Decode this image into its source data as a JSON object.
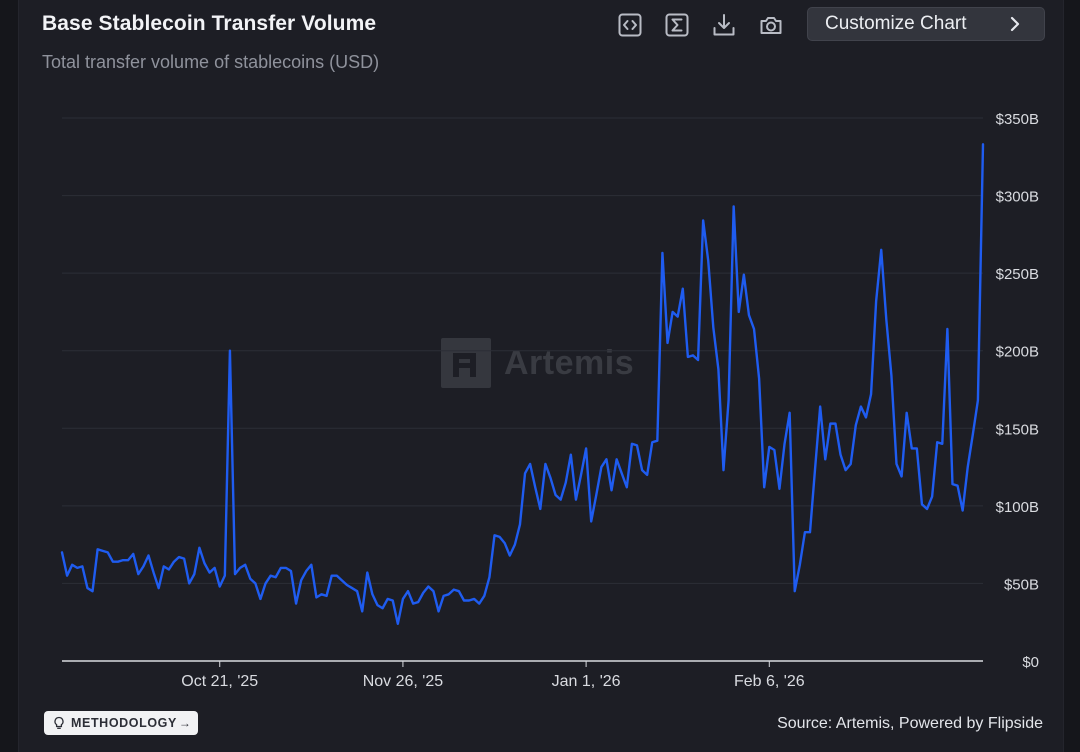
{
  "header": {
    "title": "Base Stablecoin Transfer Volume",
    "subtitle": "Total transfer volume of stablecoins (USD)",
    "customize_label": "Customize Chart"
  },
  "toolbar": {
    "icons": [
      "code-embed-icon",
      "sigma-icon",
      "download-icon",
      "camera-icon"
    ]
  },
  "watermark": {
    "text": "Artemis"
  },
  "footer": {
    "methodology_label": "METHODOLOGY",
    "source": "Source: Artemis, Powered by Flipside"
  },
  "colors": {
    "line": "#1f5cf0",
    "grid": "#2c2e37",
    "axis": "#d9dbe0",
    "background": "#1d1e25"
  },
  "chart_data": {
    "type": "line",
    "title": "Base Stablecoin Transfer Volume",
    "subtitle": "Total transfer volume of stablecoins (USD)",
    "xlabel": "",
    "ylabel": "",
    "ylim": [
      0,
      350
    ],
    "y_unit": "billion USD",
    "y_ticks": [
      {
        "value": 0,
        "label": "$0"
      },
      {
        "value": 50,
        "label": "$50B"
      },
      {
        "value": 100,
        "label": "$100B"
      },
      {
        "value": 150,
        "label": "$150B"
      },
      {
        "value": 200,
        "label": "$200B"
      },
      {
        "value": 250,
        "label": "$250B"
      },
      {
        "value": 300,
        "label": "$300B"
      },
      {
        "value": 350,
        "label": "$350B"
      }
    ],
    "x_start": "2025-09-20",
    "x_ticks": [
      {
        "date": "2025-10-21",
        "label": "Oct 21, '25"
      },
      {
        "date": "2025-11-26",
        "label": "Nov 26, '25"
      },
      {
        "date": "2026-01-01",
        "label": "Jan 1, '26"
      },
      {
        "date": "2026-02-06",
        "label": "Feb 6, '26"
      }
    ],
    "grid": true,
    "legend": "none",
    "series": [
      {
        "values": [
          70,
          55,
          62,
          60,
          61,
          47,
          45,
          72,
          71,
          70,
          64,
          64,
          65,
          65,
          69,
          56,
          61,
          68,
          57,
          47,
          61,
          59,
          64,
          67,
          66,
          50,
          56,
          73,
          63,
          57,
          60,
          48,
          55,
          200,
          56,
          60,
          62,
          53,
          50,
          40,
          50,
          55,
          54,
          60,
          60,
          58,
          37,
          52,
          58,
          62,
          41,
          43,
          42,
          55,
          55,
          52,
          49,
          47,
          45,
          32,
          57,
          43,
          36,
          34,
          40,
          39,
          24,
          40,
          45,
          37,
          38,
          44,
          48,
          45,
          32,
          42,
          43,
          46,
          45,
          39,
          39,
          40,
          37,
          42,
          54,
          81,
          80,
          76,
          68,
          75,
          88,
          121,
          127,
          112,
          98,
          127,
          118,
          107,
          104,
          115,
          133,
          104,
          120,
          137,
          90,
          107,
          125,
          130,
          110,
          130,
          121,
          112,
          140,
          139,
          123,
          120,
          141,
          142,
          263,
          205,
          225,
          222,
          240,
          196,
          197,
          194,
          284,
          258,
          215,
          188,
          123,
          168,
          293,
          225,
          249,
          223,
          214,
          182,
          112,
          138,
          136,
          111,
          140,
          160,
          45,
          62,
          83,
          83,
          124,
          164,
          130,
          153,
          153,
          133,
          123,
          127,
          152,
          164,
          157,
          172,
          232,
          265,
          220,
          184,
          127,
          119,
          160,
          137,
          137,
          101,
          98,
          106,
          141,
          140,
          214,
          114,
          113,
          97,
          125,
          146,
          168,
          333
        ]
      }
    ]
  }
}
